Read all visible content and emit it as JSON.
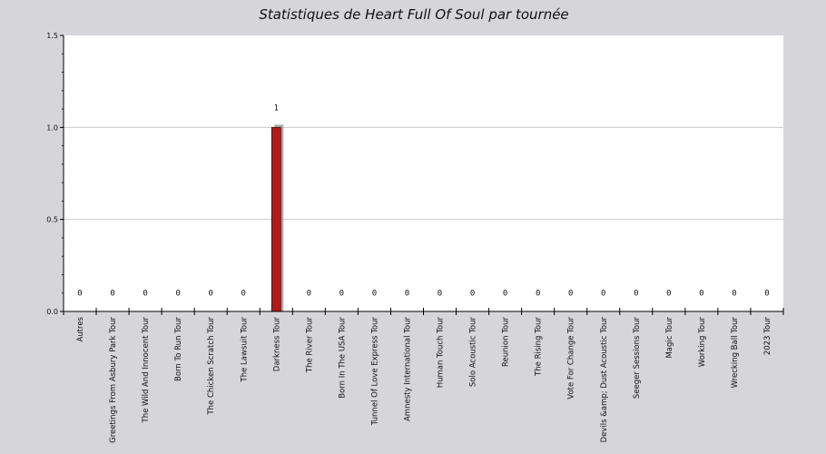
{
  "chart_data": {
    "type": "bar",
    "title": "Statistiques de Heart Full Of Soul par tournée",
    "xlabel": "",
    "ylabel": "",
    "ylim": [
      0,
      1.5
    ],
    "yticks": [
      0.0,
      0.5,
      1.0,
      1.5
    ],
    "ytick_labels": [
      "0.0",
      "0.5",
      "1.0",
      "1.5"
    ],
    "grid": true,
    "legend": "none",
    "categories": [
      "Autres",
      "Greetings From Asbury Park Tour",
      "The Wild And Innocent Tour",
      "Born To Run Tour",
      "The Chicken Scratch Tour",
      "The Lawsuit Tour",
      "Darkness Tour",
      "The River Tour",
      "Born In The USA Tour",
      "Tunnel Of Love Express Tour",
      "Amnesty International Tour",
      "Human Touch Tour",
      "Solo Acoustic Tour",
      "Reunion Tour",
      "The Rising Tour",
      "Vote For Change Tour",
      "Devils &amp; Dust Acoustic Tour",
      "Seeger Sessions Tour",
      "Magic Tour",
      "Working Tour",
      "Wrecking Ball Tour",
      "2023 Tour"
    ],
    "values": [
      0,
      0,
      0,
      0,
      0,
      0,
      1,
      0,
      0,
      0,
      0,
      0,
      0,
      0,
      0,
      0,
      0,
      0,
      0,
      0,
      0,
      0
    ],
    "value_labels": [
      "0",
      "0",
      "0",
      "0",
      "0",
      "0",
      "1",
      "0",
      "0",
      "0",
      "0",
      "0",
      "0",
      "0",
      "0",
      "0",
      "0",
      "0",
      "0",
      "0",
      "0",
      "0"
    ],
    "colors": {
      "background": "#d6d5da",
      "plot_area": "#ffffff",
      "bar": "#b01c1c",
      "bar_shadow": "#a9a9ad",
      "grid": "#c8c8c8",
      "axis": "#000000"
    }
  }
}
